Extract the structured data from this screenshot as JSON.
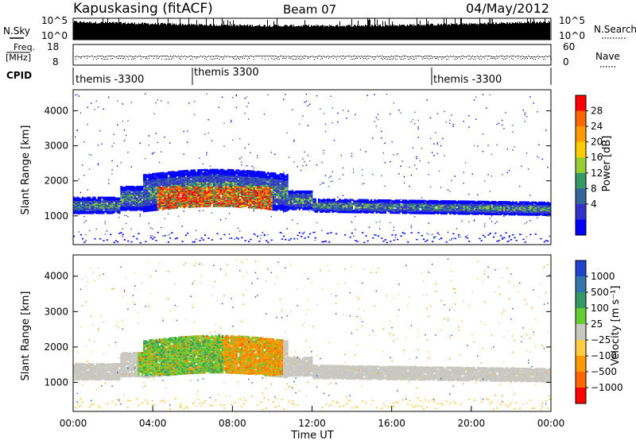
{
  "header": {
    "station": "Kapuskasing (fitACF)",
    "beam": "Beam 07",
    "date": "04/May/2012"
  },
  "panels": {
    "nsky": {
      "label": "N.Sky",
      "ticks_left": [
        "10^5",
        "10^0"
      ],
      "ticks_right": [
        "10^5",
        "10^0"
      ],
      "right_label": "N.Search"
    },
    "freq": {
      "label_line1": "Freq.",
      "label_line2": "[MHz]",
      "ticks_left": [
        "18",
        "8"
      ],
      "ticks_right": [
        "60",
        "0"
      ],
      "right_label": "Nave"
    },
    "cpid": {
      "label": "CPID",
      "segments": [
        {
          "text": "themis -3300",
          "start_hour": 0
        },
        {
          "text": "themis 3300",
          "start_hour": 6
        },
        {
          "text": "themis -3300",
          "start_hour": 18
        }
      ]
    }
  },
  "chart_data": [
    {
      "type": "heatmap",
      "name": "power",
      "ylabel": "Slant Range [km]",
      "xlabel": "",
      "xlim": [
        0,
        24
      ],
      "ylim": [
        180,
        4600
      ],
      "yticks": [
        1000,
        2000,
        3000,
        4000
      ],
      "colorbar": {
        "label": "Power [dB]",
        "ticks": [
          "28",
          "24",
          "20",
          "16",
          "12",
          "8",
          "4"
        ],
        "colors": [
          "#ff0000",
          "#ff6600",
          "#ff9900",
          "#ffcc00",
          "#99cc33",
          "#339966",
          "#336699",
          "#3333cc",
          "#0000ff"
        ]
      }
    },
    {
      "type": "heatmap",
      "name": "velocity",
      "ylabel": "Slant Range [km]",
      "xlabel": "Time UT",
      "xlim": [
        0,
        24
      ],
      "ylim": [
        180,
        4600
      ],
      "yticks": [
        1000,
        2000,
        3000,
        4000
      ],
      "xticks": [
        "00:00",
        "04:00",
        "08:00",
        "12:00",
        "16:00",
        "20:00",
        "00:00"
      ],
      "colorbar": {
        "label": "Velocity [m s⁻¹]",
        "ticks": [
          "1000",
          "500",
          "100",
          "25",
          "−25",
          "−100",
          "−500",
          "−1000"
        ],
        "colors": [
          "#2244cc",
          "#3377aa",
          "#339966",
          "#66cc33",
          "#c8c8c0",
          "#ffcc44",
          "#ff9900",
          "#ff6600",
          "#ff0000"
        ]
      }
    }
  ]
}
